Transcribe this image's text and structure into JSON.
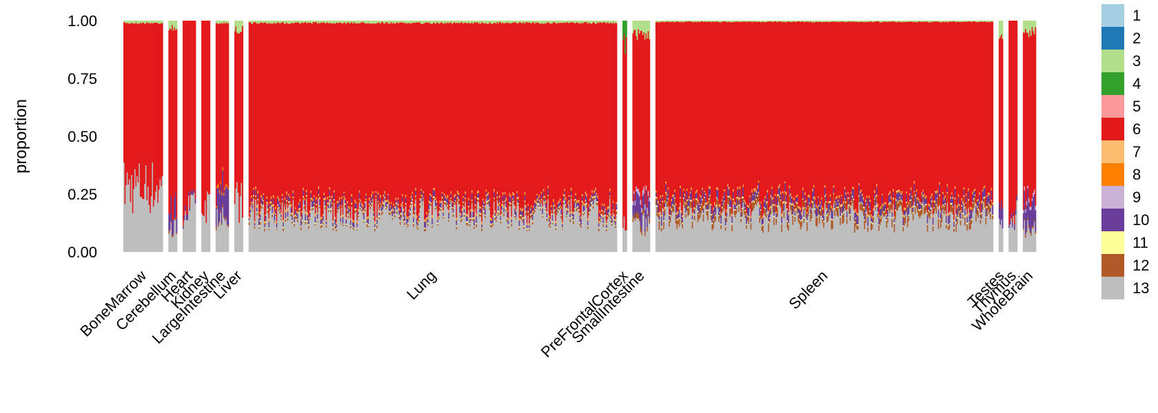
{
  "chart_data": {
    "type": "bar",
    "stacked": true,
    "ylabel": "proportion",
    "xlabel": "",
    "ylim": [
      0,
      1
    ],
    "yticks": [
      "1.00",
      "0.75",
      "0.50",
      "0.25",
      "0.00"
    ],
    "ytick_values": [
      1.0,
      0.75,
      0.5,
      0.25,
      0.0
    ],
    "legend_position": "right",
    "legend": [
      {
        "label": "1",
        "color": "#a6cee3"
      },
      {
        "label": "2",
        "color": "#1f78b4"
      },
      {
        "label": "3",
        "color": "#b2df8a"
      },
      {
        "label": "4",
        "color": "#33a02c"
      },
      {
        "label": "5",
        "color": "#fb9a99"
      },
      {
        "label": "6",
        "color": "#e31a1c"
      },
      {
        "label": "7",
        "color": "#fdbf6f"
      },
      {
        "label": "8",
        "color": "#ff7f00"
      },
      {
        "label": "9",
        "color": "#cab2d6"
      },
      {
        "label": "10",
        "color": "#6a3d9a"
      },
      {
        "label": "11",
        "color": "#ffff99"
      },
      {
        "label": "12",
        "color": "#b15928"
      },
      {
        "label": "13",
        "color": "#bebebe"
      }
    ],
    "categories": [
      "BoneMarrow",
      "Cerebellum",
      "Heart",
      "Kidney",
      "LargeIntestine",
      "Liver",
      "Lung",
      "PreFrontalCortex",
      "SmallIntestine",
      "Spleen",
      "Testes",
      "Thymus",
      "WholeBrain"
    ],
    "groups": [
      {
        "name": "BoneMarrow",
        "count": 9,
        "mean": {
          "3": 0.01,
          "6": 0.71,
          "13": 0.28
        }
      },
      {
        "name": "Cerebellum",
        "count": 2,
        "mean": {
          "3": 0.03,
          "6": 0.78,
          "10": 0.08,
          "12": 0.01,
          "13": 0.1
        }
      },
      {
        "name": "Heart",
        "count": 3,
        "mean": {
          "6": 0.8,
          "10": 0.02,
          "13": 0.18
        }
      },
      {
        "name": "Kidney",
        "count": 2,
        "mean": {
          "6": 0.79,
          "13": 0.21
        }
      },
      {
        "name": "LargeIntestine",
        "count": 3,
        "mean": {
          "3": 0.01,
          "6": 0.7,
          "8": 0.01,
          "10": 0.13,
          "12": 0.01,
          "13": 0.14
        }
      },
      {
        "name": "Liver",
        "count": 2,
        "mean": {
          "3": 0.04,
          "6": 0.74,
          "13": 0.22
        }
      },
      {
        "name": "Lung",
        "count": 84,
        "mean": {
          "3": 0.01,
          "6": 0.78,
          "7": 0.005,
          "8": 0.005,
          "10": 0.02,
          "11": 0.005,
          "12": 0.01,
          "13": 0.16
        }
      },
      {
        "name": "PreFrontalCortex",
        "count": 1,
        "mean": {
          "4": 0.1,
          "6": 0.79,
          "13": 0.11
        }
      },
      {
        "name": "SmallIntestine",
        "count": 4,
        "mean": {
          "3": 0.06,
          "6": 0.7,
          "9": 0.02,
          "10": 0.08,
          "12": 0.02,
          "13": 0.12
        }
      },
      {
        "name": "Spleen",
        "count": 77,
        "mean": {
          "3": 0.005,
          "6": 0.78,
          "7": 0.005,
          "8": 0.005,
          "10": 0.03,
          "11": 0.005,
          "12": 0.03,
          "13": 0.15
        }
      },
      {
        "name": "Testes",
        "count": 1,
        "mean": {
          "3": 0.06,
          "6": 0.7,
          "10": 0.07,
          "13": 0.17
        }
      },
      {
        "name": "Thymus",
        "count": 2,
        "mean": {
          "6": 0.81,
          "10": 0.02,
          "13": 0.17
        }
      },
      {
        "name": "WholeBrain",
        "count": 3,
        "mean": {
          "3": 0.05,
          "6": 0.72,
          "9": 0.02,
          "10": 0.1,
          "12": 0.01,
          "13": 0.1
        }
      }
    ]
  }
}
